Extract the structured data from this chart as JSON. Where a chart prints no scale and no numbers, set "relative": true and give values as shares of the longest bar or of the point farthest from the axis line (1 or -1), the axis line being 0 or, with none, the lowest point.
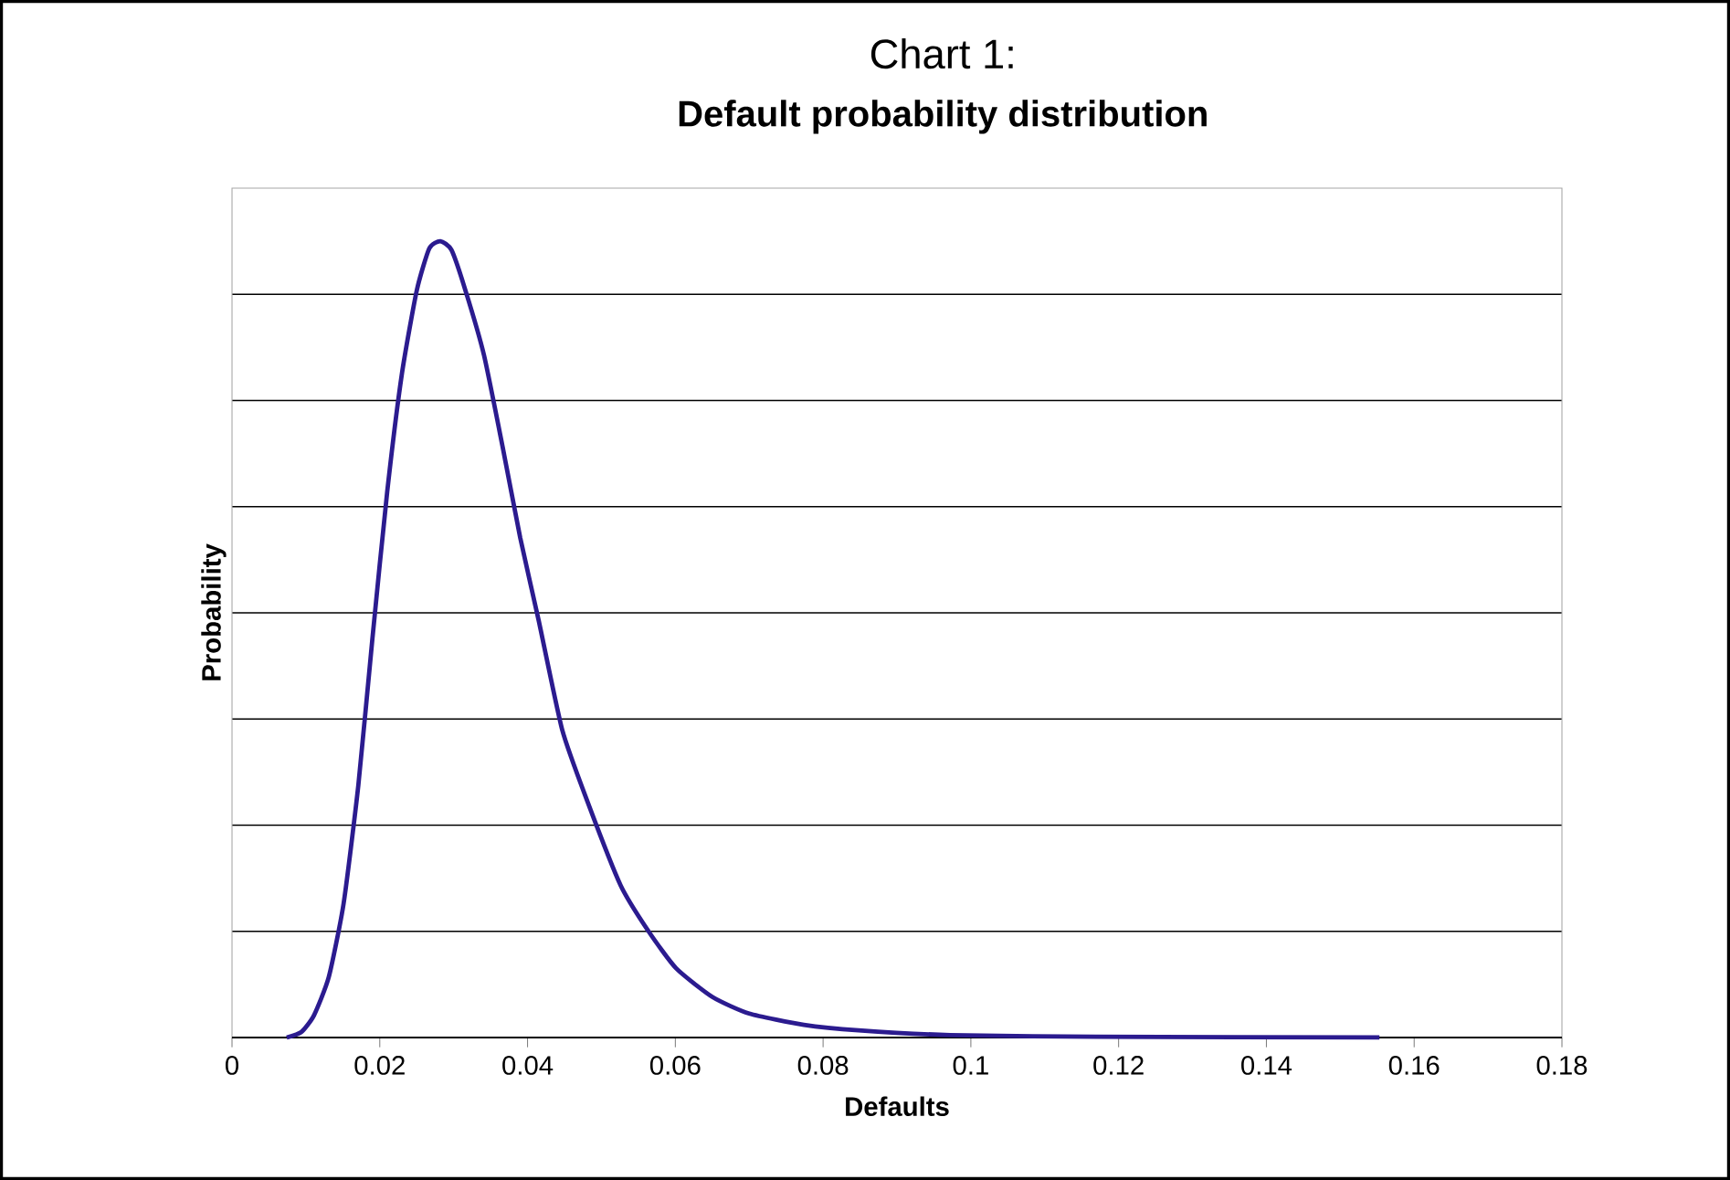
{
  "chart_data": {
    "type": "line",
    "title": "Chart 1:",
    "subtitle": "Default probability distribution",
    "xlabel": "Defaults",
    "ylabel": "Probability",
    "relative": true,
    "xlim": [
      0,
      0.18
    ],
    "xticks": [
      0,
      0.02,
      0.04,
      0.06,
      0.08,
      0.1,
      0.12,
      0.14,
      0.16,
      0.18
    ],
    "tick_labels": "x",
    "grid": "y",
    "marker": "none",
    "line_style": "solid",
    "series": [
      {
        "color": "#2b1b8f",
        "x": [
          0.0074,
          0.0094,
          0.0111,
          0.0131,
          0.0151,
          0.0171,
          0.019,
          0.021,
          0.023,
          0.025,
          0.0267,
          0.0282,
          0.0297,
          0.0316,
          0.0341,
          0.0366,
          0.039,
          0.0415,
          0.0447,
          0.0482,
          0.0526,
          0.0564,
          0.0601,
          0.065,
          0.07,
          0.0774,
          0.0848,
          0.0972,
          0.117,
          0.1553
        ],
        "values": [
          0,
          0.007,
          0.028,
          0.076,
          0.168,
          0.317,
          0.501,
          0.685,
          0.834,
          0.938,
          0.991,
          1.0,
          0.989,
          0.938,
          0.857,
          0.743,
          0.628,
          0.524,
          0.386,
          0.294,
          0.191,
          0.133,
          0.087,
          0.051,
          0.03,
          0.016,
          0.009,
          0.003,
          0.001,
          0
        ]
      }
    ]
  }
}
